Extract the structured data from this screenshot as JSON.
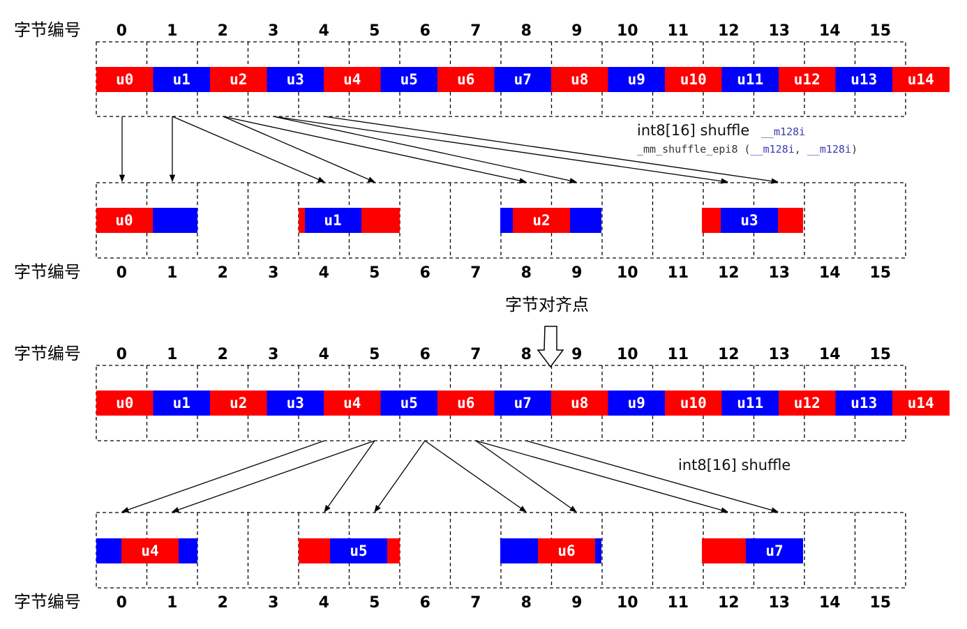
{
  "labels": {
    "byte_index": "字节编号",
    "align_point": "字节对齐点",
    "shuffle_top": "int8[16] shuffle",
    "shuffle_type": "__m128i",
    "intrinsic_name": "_mm_shuffle_epi8",
    "intrinsic_args_open": " (",
    "intrinsic_arg1": "__m128i",
    "intrinsic_sep": ", ",
    "intrinsic_arg2": "__m128i",
    "intrinsic_args_close": ")",
    "shuffle_bottom": "int8[16] shuffle"
  },
  "byte_indices": [
    "0",
    "1",
    "2",
    "3",
    "4",
    "5",
    "6",
    "7",
    "8",
    "9",
    "10",
    "11",
    "12",
    "13",
    "14",
    "15"
  ],
  "units": [
    "u0",
    "u1",
    "u2",
    "u3",
    "u4",
    "u5",
    "u6",
    "u7",
    "u8",
    "u9",
    "u10",
    "u11",
    "u12",
    "u13",
    "u14"
  ],
  "result_top": [
    "u0",
    "u1",
    "u2",
    "u3"
  ],
  "result_bottom": [
    "u4",
    "u5",
    "u6",
    "u7"
  ],
  "colors": {
    "red": "#ff0000",
    "blue": "#0000ff",
    "grid": "#000000",
    "arrow": "#000000"
  }
}
